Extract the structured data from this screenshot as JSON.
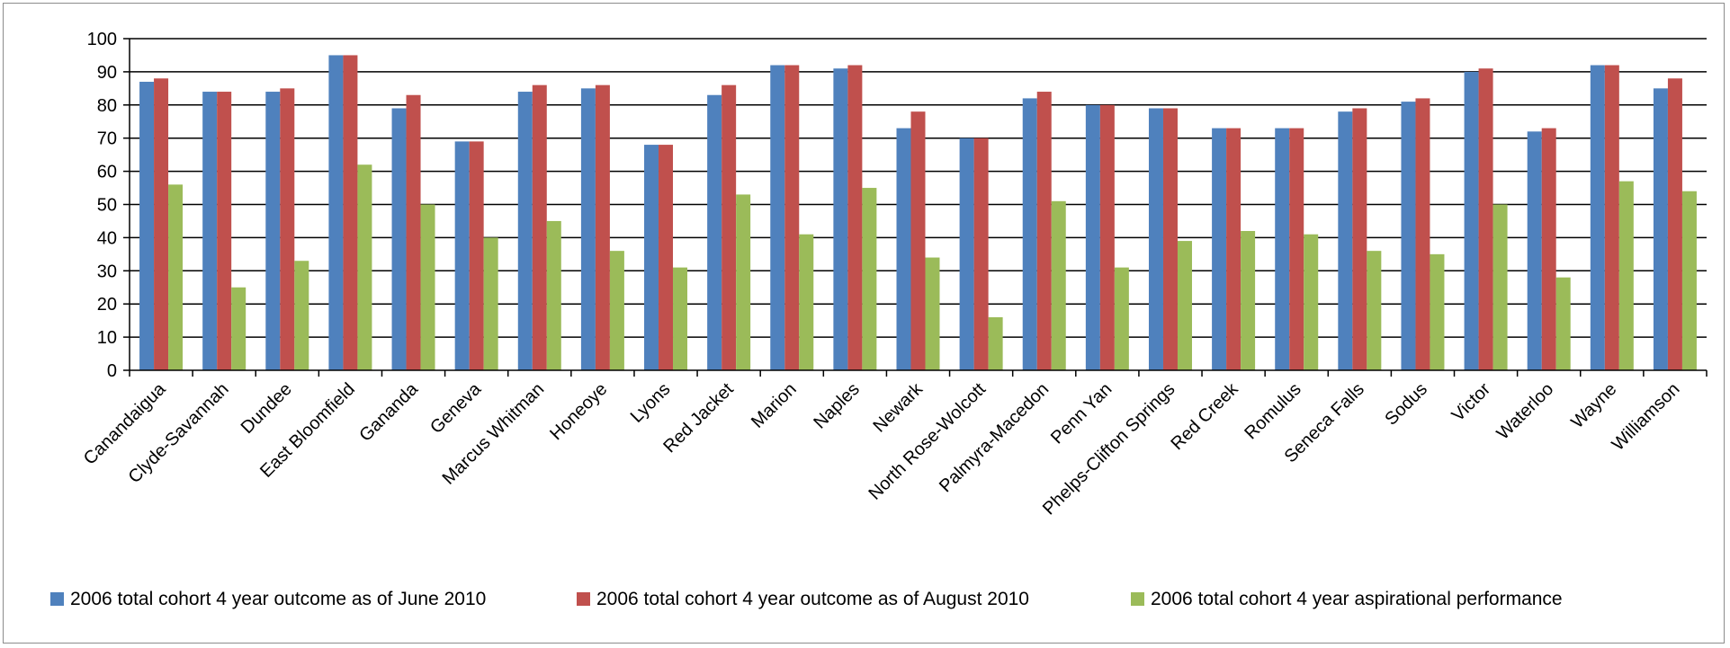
{
  "chart_data": {
    "type": "bar",
    "ylim": [
      0,
      100
    ],
    "yticks": [
      0,
      10,
      20,
      30,
      40,
      50,
      60,
      70,
      80,
      90,
      100
    ],
    "grid": true,
    "legend_position": "bottom",
    "categories": [
      "Canandaigua",
      "Clyde-Savannah",
      "Dundee",
      "East Bloomfield",
      "Gananda",
      "Geneva",
      "Marcus Whitman",
      "Honeoye",
      "Lyons",
      "Red Jacket",
      "Marion",
      "Naples",
      "Newark",
      "North Rose-Wolcott",
      "Palmyra-Macedon",
      "Penn Yan",
      "Phelps-Clifton Springs",
      "Red Creek",
      "Romulus",
      "Seneca Falls",
      "Sodus",
      "Victor",
      "Waterloo",
      "Wayne",
      "Williamson"
    ],
    "series": [
      {
        "name": "2006 total cohort 4 year outcome as of June 2010",
        "color": "#4f81bd",
        "values": [
          87,
          84,
          84,
          95,
          79,
          69,
          84,
          85,
          68,
          83,
          92,
          91,
          73,
          70,
          82,
          80,
          79,
          73,
          73,
          78,
          81,
          90,
          72,
          92,
          85
        ]
      },
      {
        "name": "2006 total cohort 4 year outcome as of August 2010",
        "color": "#c0504d",
        "values": [
          88,
          84,
          85,
          95,
          83,
          69,
          86,
          86,
          68,
          86,
          92,
          92,
          78,
          70,
          84,
          80,
          79,
          73,
          73,
          79,
          82,
          91,
          73,
          92,
          88
        ]
      },
      {
        "name": "2006 total cohort 4 year aspirational performance",
        "color": "#9bbb59",
        "values": [
          56,
          25,
          33,
          62,
          50,
          40,
          45,
          36,
          31,
          53,
          41,
          55,
          34,
          16,
          51,
          31,
          39,
          42,
          41,
          36,
          35,
          50,
          28,
          57,
          54
        ]
      }
    ]
  }
}
